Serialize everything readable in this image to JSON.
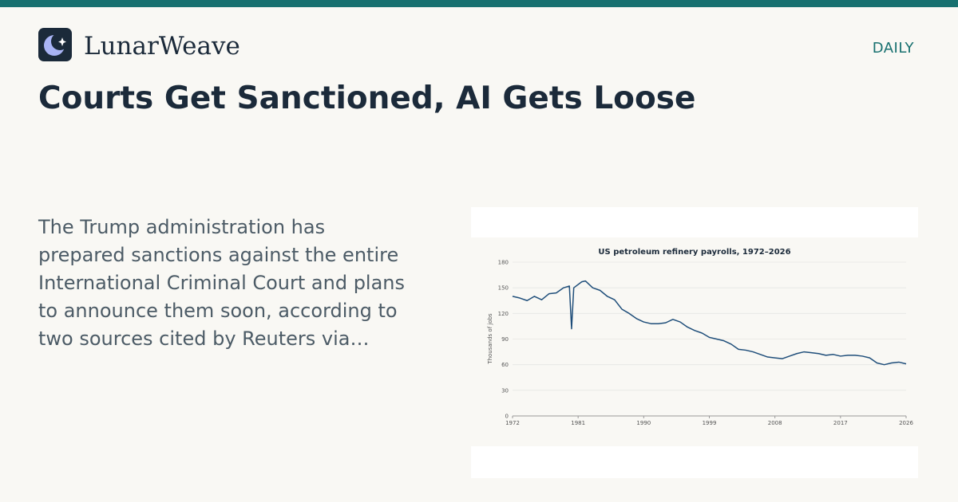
{
  "header": {
    "brand": "LunarWeave",
    "edition": "DAILY"
  },
  "headline": "Courts Get Sanctioned, AI Gets Loose",
  "summary": "The Trump administration has prepared sanctions against the entire International Criminal Court and plans to announce them soon, according to two sources cited by Reuters via…",
  "chart_data": {
    "type": "line",
    "title": "US petroleum refinery payrolls, 1972–2026",
    "y_label": "Thousands of jobs",
    "x": [
      1972,
      1973,
      1974,
      1975,
      1976,
      1977,
      1978,
      1979,
      1979.8,
      1980.1,
      1980.4,
      1981.5,
      1982,
      1983,
      1984,
      1985,
      1986,
      1987,
      1988,
      1989,
      1990,
      1991,
      1992,
      1993,
      1994,
      1995,
      1996,
      1997,
      1998,
      1999,
      2000,
      2001,
      2002,
      2003,
      2004,
      2005,
      2006,
      2007,
      2008,
      2009,
      2010,
      2011,
      2012,
      2013,
      2014,
      2015,
      2016,
      2017,
      2018,
      2019,
      2020,
      2021,
      2022,
      2023,
      2024,
      2025,
      2026
    ],
    "values": [
      140,
      138,
      135,
      140,
      136,
      143,
      144,
      150,
      152,
      102,
      150,
      157,
      158,
      150,
      147,
      140,
      136,
      125,
      120,
      114,
      110,
      108,
      108,
      109,
      113,
      110,
      104,
      100,
      97,
      92,
      90,
      88,
      84,
      78,
      77,
      75,
      72,
      69,
      68,
      67,
      70,
      73,
      75,
      74,
      73,
      71,
      72,
      70,
      71,
      71,
      70,
      68,
      62,
      60,
      62,
      63,
      61
    ],
    "color": "#1f4e7a",
    "xlim": [
      1972,
      2026
    ],
    "xticks": [
      1972,
      1981,
      1990,
      1999,
      2008,
      2017,
      2026
    ],
    "ylim": [
      0,
      180
    ],
    "yticks": [
      0,
      30,
      60,
      90,
      120,
      150,
      180
    ],
    "grid": true
  }
}
